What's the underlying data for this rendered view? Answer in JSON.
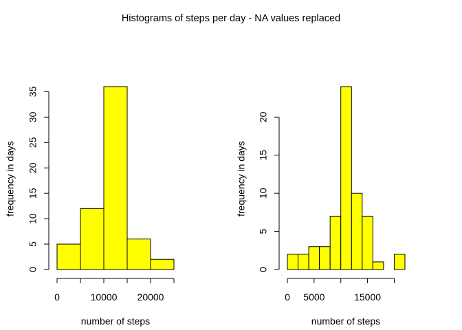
{
  "title": "Histograms of steps per day - NA values replaced",
  "colors": {
    "bar_fill": "#FFFF00",
    "bar_stroke": "#000000",
    "axis": "#000000"
  },
  "chart_data": [
    {
      "type": "bar",
      "subtype": "histogram",
      "title": "",
      "xlabel": "number of steps",
      "ylabel": "frequency in days",
      "bins": [
        [
          0,
          5000
        ],
        [
          5000,
          10000
        ],
        [
          10000,
          15000
        ],
        [
          15000,
          20000
        ],
        [
          20000,
          25000
        ]
      ],
      "values": [
        5,
        12,
        36,
        6,
        2
      ],
      "xlim": [
        0,
        25000
      ],
      "ylim": [
        0,
        36
      ],
      "xticks": [
        0,
        5000,
        10000,
        15000,
        20000,
        25000
      ],
      "xtick_labels": [
        "0",
        "10000",
        "20000"
      ],
      "xtick_label_values": [
        0,
        10000,
        20000
      ],
      "yticks": [
        0,
        5,
        10,
        15,
        20,
        25,
        30,
        35
      ],
      "ytick_labels": [
        "0",
        "5",
        "10",
        "15",
        "20",
        "25",
        "30",
        "35"
      ],
      "grid": false,
      "legend": "none"
    },
    {
      "type": "bar",
      "subtype": "histogram",
      "title": "",
      "xlabel": "number of steps",
      "ylabel": "frequency in days",
      "bins": [
        [
          0,
          2000
        ],
        [
          2000,
          4000
        ],
        [
          4000,
          6000
        ],
        [
          6000,
          8000
        ],
        [
          8000,
          10000
        ],
        [
          10000,
          12000
        ],
        [
          12000,
          14000
        ],
        [
          14000,
          16000
        ],
        [
          16000,
          18000
        ],
        [
          18000,
          20000
        ],
        [
          20000,
          22000
        ]
      ],
      "values": [
        2,
        2,
        3,
        3,
        7,
        24,
        10,
        7,
        1,
        0,
        2
      ],
      "xlim": [
        0,
        22000
      ],
      "ylim": [
        0,
        24
      ],
      "xticks": [
        0,
        5000,
        10000,
        15000,
        20000
      ],
      "xtick_labels": [
        "0",
        "5000",
        "15000"
      ],
      "xtick_label_values": [
        0,
        5000,
        15000
      ],
      "yticks": [
        0,
        5,
        10,
        15,
        20
      ],
      "ytick_labels": [
        "0",
        "5",
        "10",
        "15",
        "20"
      ],
      "grid": false,
      "legend": "none"
    }
  ]
}
